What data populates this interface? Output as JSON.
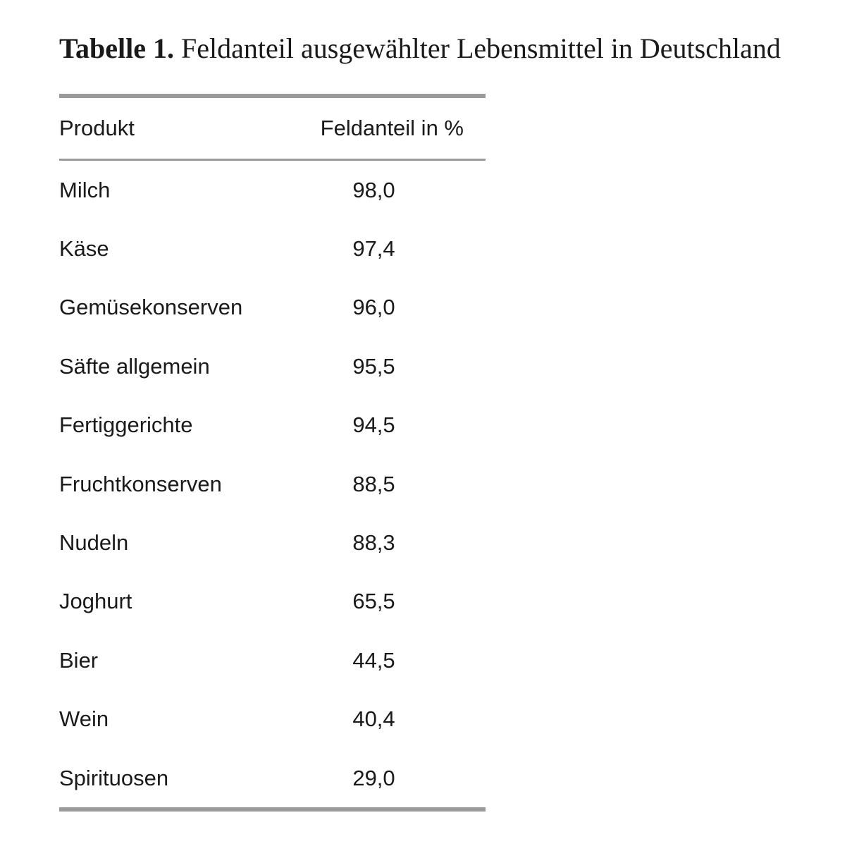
{
  "caption": {
    "label": "Tabelle 1.",
    "title": "Feldanteil ausgewählter Lebensmittel in Deutschland"
  },
  "table": {
    "columns": [
      "Produkt",
      "Feldanteil in %"
    ],
    "rows": [
      {
        "product": "Milch",
        "value": "98,0"
      },
      {
        "product": "Käse",
        "value": "97,4"
      },
      {
        "product": "Gemüsekonserven",
        "value": "96,0"
      },
      {
        "product": "Säfte allgemein",
        "value": "95,5"
      },
      {
        "product": "Fertiggerichte",
        "value": "94,5"
      },
      {
        "product": "Fruchtkonserven",
        "value": "88,5"
      },
      {
        "product": "Nudeln",
        "value": "88,3"
      },
      {
        "product": "Joghurt",
        "value": "65,5"
      },
      {
        "product": "Bier",
        "value": "44,5"
      },
      {
        "product": "Wein",
        "value": "40,4"
      },
      {
        "product": "Spirituosen",
        "value": "29,0"
      }
    ]
  },
  "colors": {
    "text": "#1a1a1a",
    "rule": "#9a9a9a"
  }
}
